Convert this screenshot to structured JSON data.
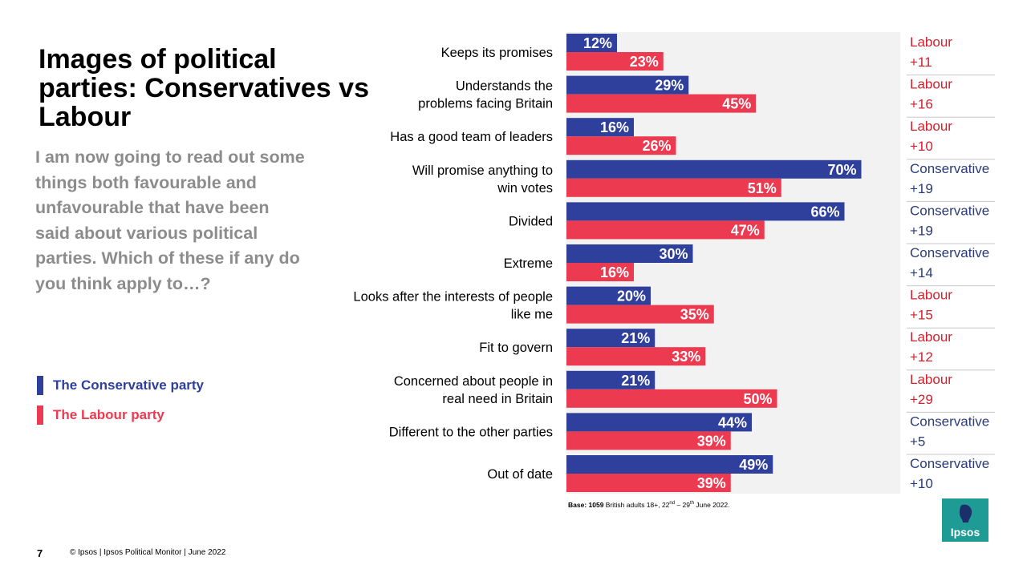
{
  "title": "Images of political parties: Conservatives vs Labour",
  "question": "I am now going to read out some things both favourable and unfavourable that have been said about various political parties. Which of these if any do you think apply to…?",
  "legend": [
    {
      "label": "The Conservative party",
      "color": "#2e3f9c"
    },
    {
      "label": "The Labour party",
      "color": "#ec3b50"
    }
  ],
  "chart_data": {
    "type": "bar",
    "orientation": "horizontal",
    "unit": "%",
    "xlim": [
      0,
      100
    ],
    "categories": [
      [
        "Keeps its promises"
      ],
      [
        "Understands the",
        "problems facing Britain"
      ],
      [
        "Has a good team of leaders"
      ],
      [
        "Will promise anything to",
        "win votes"
      ],
      [
        "Divided"
      ],
      [
        "Extreme"
      ],
      [
        "Looks after the interests of people",
        "like me"
      ],
      [
        "Fit to govern"
      ],
      [
        "Concerned about people in",
        "real need in Britain"
      ],
      [
        "Different to the other parties"
      ],
      [
        "Out of date"
      ]
    ],
    "series": [
      {
        "name": "The Conservative party",
        "color": "#2e3f9c",
        "values": [
          12,
          29,
          16,
          70,
          66,
          30,
          20,
          21,
          21,
          44,
          49
        ]
      },
      {
        "name": "The Labour party",
        "color": "#ec3b50",
        "values": [
          23,
          45,
          26,
          51,
          47,
          16,
          35,
          33,
          50,
          39,
          39
        ]
      }
    ],
    "leads": [
      {
        "party": "Labour",
        "value": "+11"
      },
      {
        "party": "Labour",
        "value": "+16"
      },
      {
        "party": "Labour",
        "value": "+10"
      },
      {
        "party": "Conservative",
        "value": "+19"
      },
      {
        "party": "Conservative",
        "value": "+19"
      },
      {
        "party": "Conservative",
        "value": "+14"
      },
      {
        "party": "Labour",
        "value": "+15"
      },
      {
        "party": "Labour",
        "value": "+12"
      },
      {
        "party": "Labour",
        "value": "+29"
      },
      {
        "party": "Conservative",
        "value": "+5"
      },
      {
        "party": "Conservative",
        "value": "+10"
      }
    ]
  },
  "base_note": {
    "bold": "Base: 1059",
    "pre": " British adults 18+, 22",
    "sup1": "nd",
    "mid": " – 29",
    "sup2": "th",
    "post": " June 2022."
  },
  "page_number": "7",
  "footer": "© Ipsos | Ipsos  Political Monitor | June 2022",
  "logo_text": "Ipsos",
  "colors": {
    "conservative": "#2e3f9c",
    "labour": "#ec3b50",
    "lead_conservative": "#2a3b7a",
    "lead_labour": "#d4202c",
    "panel": "#f2f2f2",
    "logo": "#1e9b95"
  }
}
